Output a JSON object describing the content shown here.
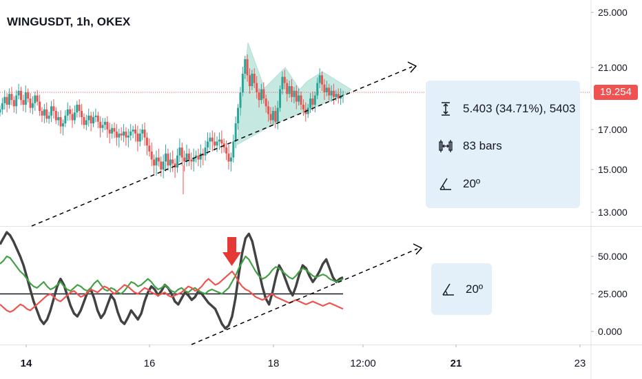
{
  "header": {
    "title": "WINGUSDT, 1h, OKEX"
  },
  "colors": {
    "up": "#26a69a",
    "down": "#ef5350",
    "price_line": "#ef5350",
    "triangle_fill": "#b2e0d6",
    "trend_line": "#000000",
    "osc_dark": "#424242",
    "osc_green": "#43a047",
    "osc_red": "#ef5350",
    "arrow": "#e53935",
    "box_bg": "#e3eff9"
  },
  "measure_box": {
    "range_text": "5.403 (34.71%), 5403",
    "bars_text": "83 bars",
    "angle_text": "20º",
    "range_icon": "price-range-icon",
    "bars_icon": "bar-range-icon",
    "angle_icon": "angle-icon"
  },
  "osc_box": {
    "angle_text": "20º",
    "angle_icon": "angle-icon"
  },
  "price_tag": {
    "value": "19.254"
  },
  "chart_data": [
    {
      "type": "candlestick",
      "title": "WINGUSDT, 1h, OKEX",
      "xlabel": "",
      "ylabel": "",
      "x_tick_labels": [
        "14",
        "16",
        "18",
        "12:00",
        "21",
        "23"
      ],
      "y_tick_labels": [
        "25.000",
        "21.000",
        "17.000",
        "15.000",
        "13.000"
      ],
      "ylim": [
        11.6,
        26.2
      ],
      "current_price": 19.254,
      "grid": false,
      "series": [
        {
          "name": "",
          "close": [
            18.3,
            18.7,
            19.1,
            18.6,
            19.3,
            18.9,
            18.5,
            19.2,
            19.5,
            18.9,
            18.6,
            19.4,
            19.0,
            18.4,
            18.7,
            19.2,
            18.8,
            18.2,
            17.9,
            18.3,
            17.7,
            17.9,
            18.5,
            18.2,
            17.6,
            17.8,
            17.2,
            17.4,
            17.9,
            18.3,
            18.0,
            17.6,
            18.1,
            18.6,
            18.2,
            17.8,
            17.3,
            17.6,
            17.9,
            17.4,
            17.8,
            17.9,
            17.5,
            17.1,
            17.3,
            17.5,
            17.0,
            16.8,
            17.1,
            16.9,
            16.6,
            16.8,
            16.7,
            16.9,
            16.6,
            16.7,
            16.9,
            17.0,
            16.8,
            16.4,
            16.8,
            17.0,
            16.6,
            16.2,
            15.9,
            15.5,
            15.2,
            15.6,
            15.4,
            15.0,
            15.4,
            15.8,
            15.2,
            15.5,
            15.3,
            15.1,
            15.7,
            16.1,
            15.6,
            15.4,
            15.8,
            15.5,
            15.4,
            15.6,
            15.7,
            15.5,
            15.8,
            15.7,
            16.1,
            16.4,
            16.6,
            16.4,
            16.2,
            16.4,
            16.5,
            16.3,
            16.1,
            15.8,
            15.4,
            15.6,
            16.4,
            17.4,
            18.4,
            19.4,
            20.6,
            21.6,
            20.5,
            19.8,
            20.6,
            20.0,
            19.4,
            18.9,
            19.6,
            19.0,
            18.5,
            18.0,
            17.6,
            18.2,
            17.5,
            18.4,
            19.6,
            20.4,
            20.0,
            19.3,
            19.8,
            19.1,
            19.5,
            18.8,
            19.2,
            18.6,
            18.3,
            18.0,
            18.4,
            19.0,
            18.6,
            19.2,
            20.0,
            20.5,
            19.9,
            19.4,
            19.7,
            19.2,
            19.5,
            19.1,
            19.3,
            19.0,
            19.2,
            19.254
          ]
        }
      ]
    },
    {
      "type": "line",
      "title": "",
      "xlabel": "",
      "ylabel": "",
      "y_tick_labels": [
        "50.000",
        "25.000",
        "0.000"
      ],
      "ylim": [
        -10,
        68
      ],
      "horizontal_line": 25,
      "grid": false,
      "series": [
        {
          "name": "",
          "color": "#424242",
          "values": [
            58,
            62,
            66,
            64,
            60,
            55,
            50,
            44,
            36,
            28,
            20,
            14,
            8,
            5,
            8,
            14,
            22,
            30,
            35,
            31,
            24,
            17,
            12,
            10,
            14,
            20,
            26,
            28,
            22,
            14,
            9,
            12,
            18,
            24,
            21,
            13,
            7,
            5,
            9,
            14,
            11,
            8,
            12,
            20,
            26,
            30,
            28,
            24,
            27,
            31,
            29,
            25,
            20,
            18,
            22,
            26,
            24,
            21,
            23,
            27,
            25,
            22,
            19,
            17,
            15,
            10,
            5,
            2,
            4,
            10,
            22,
            38,
            52,
            62,
            65,
            60,
            50,
            40,
            30,
            22,
            18,
            26,
            36,
            44,
            40,
            34,
            28,
            24,
            30,
            38,
            44,
            42,
            37,
            33,
            36,
            40,
            45,
            48,
            42,
            36,
            33,
            35,
            36
          ],
          "start_index": 0
        },
        {
          "name": "",
          "color": "#43a047",
          "values": [
            45,
            47,
            50,
            49,
            46,
            43,
            40,
            38,
            35,
            32,
            30,
            29,
            31,
            33,
            30,
            28,
            29,
            31,
            33,
            30,
            28,
            27,
            29,
            31,
            30,
            28,
            27,
            29,
            32,
            34,
            31,
            28,
            27,
            29,
            28,
            26,
            25,
            27,
            30,
            33,
            32,
            30,
            31,
            33,
            35,
            33,
            30,
            28,
            29,
            31,
            29,
            27,
            26,
            28,
            29,
            27,
            26,
            28,
            29,
            27,
            26,
            25,
            27,
            28,
            27,
            26,
            25,
            27,
            29,
            33,
            37,
            42,
            46,
            50,
            48,
            44,
            40,
            37,
            35,
            36,
            38,
            41,
            43,
            42,
            40,
            38,
            36,
            35,
            37,
            40,
            42,
            41,
            39,
            37,
            36,
            37,
            38,
            37,
            35,
            34,
            33,
            34,
            35
          ],
          "start_index": 0
        },
        {
          "name": "",
          "color": "#ef5350",
          "values": [
            18,
            16,
            14,
            13,
            14,
            16,
            18,
            17,
            15,
            14,
            16,
            18,
            20,
            22,
            24,
            25,
            23,
            21,
            20,
            22,
            24,
            26,
            27,
            25,
            23,
            24,
            26,
            28,
            27,
            26,
            28,
            30,
            29,
            27,
            25,
            27,
            29,
            31,
            30,
            28,
            26,
            25,
            27,
            29,
            28,
            26,
            25,
            24,
            25,
            26,
            24,
            23,
            24,
            25,
            26,
            28,
            30,
            29,
            27,
            28,
            30,
            33,
            35,
            33,
            31,
            32,
            34,
            36,
            38,
            40,
            37,
            33,
            30,
            28,
            27,
            25,
            23,
            22,
            21,
            22,
            24,
            25,
            23,
            22,
            21,
            20,
            19,
            20,
            21,
            20,
            19,
            18,
            19,
            20,
            19,
            18,
            17,
            18,
            19,
            18,
            17,
            16,
            15
          ],
          "start_index": 0
        }
      ]
    }
  ]
}
